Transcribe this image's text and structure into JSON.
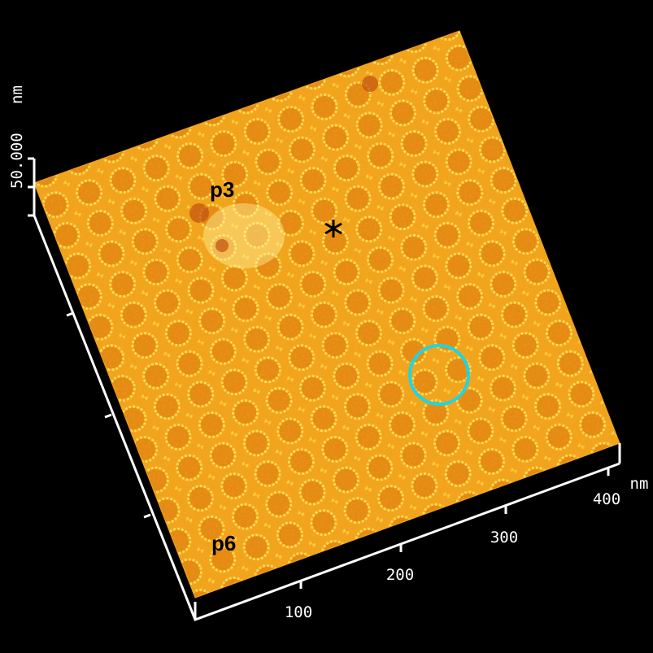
{
  "image": {
    "labels": [
      "p3",
      "p6"
    ]
  },
  "axes": {
    "x_ticks": [
      "100",
      "200",
      "300",
      "400"
    ],
    "x_unit": "nm",
    "z_tick": "50.000",
    "z_unit": "nm"
  }
}
